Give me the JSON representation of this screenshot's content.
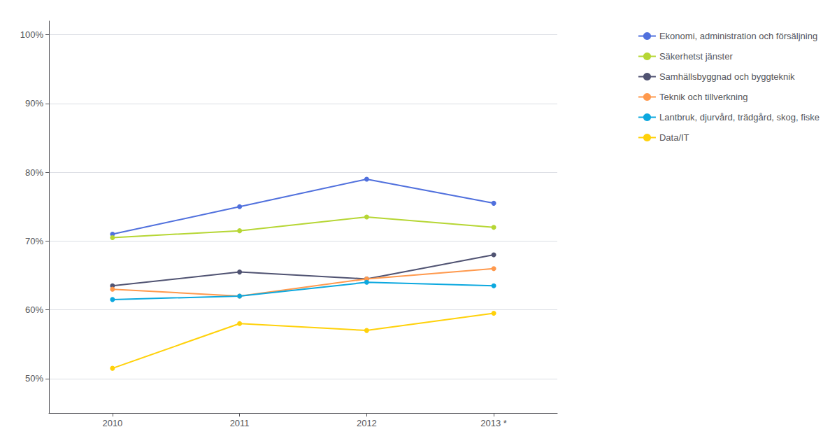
{
  "chart_data": {
    "type": "line",
    "categories": [
      "2010",
      "2011",
      "2012",
      "2013 *"
    ],
    "series": [
      {
        "name": "Ekonomi, administration och försäljning",
        "values": [
          71.0,
          75.0,
          79.0,
          75.5
        ]
      },
      {
        "name": "Säkerhetst jänster",
        "values": [
          70.5,
          71.5,
          73.5,
          72.0
        ]
      },
      {
        "name": "Samhällsbyggnad och byggteknik",
        "values": [
          63.5,
          65.5,
          64.5,
          68.0
        ]
      },
      {
        "name": "Teknik och tillverkning",
        "values": [
          63.0,
          62.0,
          64.5,
          66.0
        ]
      },
      {
        "name": "Lantbruk, djurvård, trädgård, skog, fiske",
        "values": [
          61.5,
          62.0,
          64.0,
          63.5
        ]
      },
      {
        "name": "Data/IT",
        "values": [
          51.5,
          58.0,
          57.0,
          59.5
        ]
      }
    ],
    "ylim": [
      45,
      102
    ],
    "yticks": [
      {
        "value": 50,
        "label": "50%"
      },
      {
        "value": 60,
        "label": "60%"
      },
      {
        "value": 70,
        "label": "70%"
      },
      {
        "value": 80,
        "label": "80%"
      },
      {
        "value": 90,
        "label": "90%"
      },
      {
        "value": 100,
        "label": "100%"
      }
    ],
    "marker": "circle",
    "grid": true,
    "legend": "right"
  }
}
